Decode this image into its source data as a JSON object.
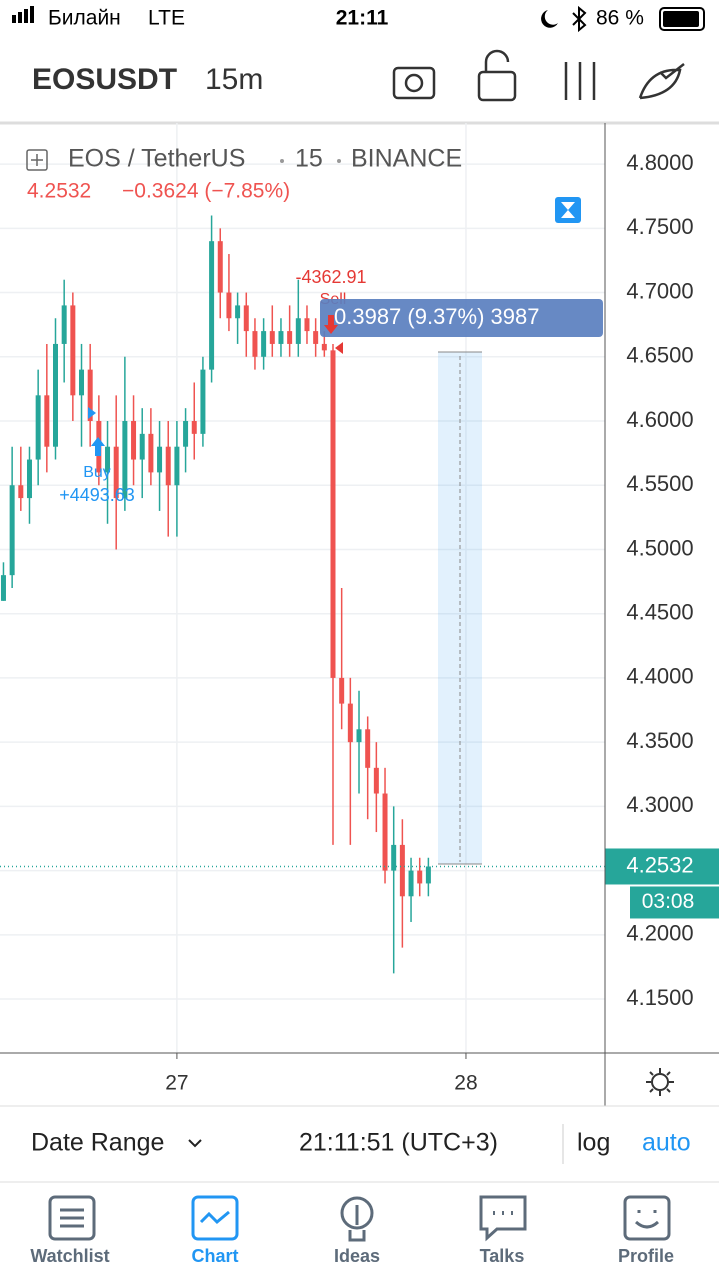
{
  "status_bar": {
    "carrier": "Билайн",
    "network": "LTE",
    "time": "21:11",
    "battery": "86 %"
  },
  "header": {
    "symbol": "EOSUSDT",
    "interval": "15m"
  },
  "chart_data": {
    "type": "candlestick",
    "legend": {
      "name": "EOS / TetherUS",
      "interval": "15",
      "exchange": "BINANCE"
    },
    "quote": {
      "last": "4.2532",
      "change": "−0.3624 (−7.85%)"
    },
    "up_color": "#26a69a",
    "down_color": "#ef5350",
    "x": [
      26.4,
      26.43,
      26.46,
      26.49,
      26.52,
      26.55,
      26.58,
      26.61,
      26.64,
      26.67,
      26.7,
      26.73,
      26.76,
      26.79,
      26.82,
      26.85,
      26.88,
      26.91,
      26.94,
      26.97,
      27.0,
      27.03,
      27.06,
      27.09,
      27.12,
      27.15,
      27.18,
      27.21,
      27.24,
      27.27,
      27.3,
      27.33,
      27.36,
      27.39,
      27.42,
      27.45,
      27.48,
      27.51,
      27.54,
      27.57,
      27.6,
      27.63,
      27.66,
      27.69,
      27.72,
      27.75,
      27.78,
      27.81,
      27.84,
      27.87
    ],
    "open": [
      4.46,
      4.48,
      4.55,
      4.54,
      4.57,
      4.62,
      4.58,
      4.66,
      4.69,
      4.62,
      4.64,
      4.6,
      4.56,
      4.58,
      4.54,
      4.6,
      4.57,
      4.59,
      4.56,
      4.58,
      4.55,
      4.58,
      4.6,
      4.59,
      4.64,
      4.74,
      4.7,
      4.68,
      4.69,
      4.67,
      4.65,
      4.67,
      4.66,
      4.67,
      4.66,
      4.68,
      4.67,
      4.66,
      4.655,
      4.4,
      4.38,
      4.35,
      4.36,
      4.33,
      4.31,
      4.25,
      4.27,
      4.23,
      4.25,
      4.24
    ],
    "high": [
      4.49,
      4.58,
      4.58,
      4.58,
      4.64,
      4.66,
      4.68,
      4.71,
      4.7,
      4.66,
      4.66,
      4.62,
      4.6,
      4.62,
      4.65,
      4.62,
      4.61,
      4.61,
      4.6,
      4.6,
      4.6,
      4.61,
      4.63,
      4.65,
      4.76,
      4.75,
      4.73,
      4.7,
      4.7,
      4.68,
      4.68,
      4.69,
      4.68,
      4.69,
      4.71,
      4.69,
      4.68,
      4.67,
      4.66,
      4.47,
      4.4,
      4.39,
      4.37,
      4.35,
      4.33,
      4.3,
      4.29,
      4.26,
      4.26,
      4.26
    ],
    "low": [
      4.46,
      4.47,
      4.53,
      4.52,
      4.55,
      4.56,
      4.57,
      4.63,
      4.6,
      4.58,
      4.58,
      4.55,
      4.52,
      4.5,
      4.53,
      4.55,
      4.54,
      4.55,
      4.53,
      4.51,
      4.51,
      4.56,
      4.57,
      4.58,
      4.63,
      4.68,
      4.67,
      4.66,
      4.65,
      4.64,
      4.64,
      4.65,
      4.65,
      4.65,
      4.65,
      4.66,
      4.65,
      4.65,
      4.27,
      4.36,
      4.27,
      4.31,
      4.29,
      4.28,
      4.24,
      4.17,
      4.19,
      4.21,
      4.23,
      4.23
    ],
    "close": [
      4.48,
      4.55,
      4.54,
      4.57,
      4.62,
      4.58,
      4.66,
      4.69,
      4.62,
      4.64,
      4.6,
      4.56,
      4.58,
      4.54,
      4.6,
      4.57,
      4.59,
      4.56,
      4.58,
      4.55,
      4.58,
      4.6,
      4.59,
      4.64,
      4.74,
      4.7,
      4.68,
      4.69,
      4.67,
      4.65,
      4.67,
      4.66,
      4.67,
      4.66,
      4.68,
      4.67,
      4.66,
      4.655,
      4.4,
      4.38,
      4.35,
      4.36,
      4.33,
      4.31,
      4.25,
      4.27,
      4.23,
      4.25,
      4.24,
      4.2532
    ],
    "xlim": [
      26.388,
      28.481
    ],
    "ylim": [
      4.108,
      4.832
    ],
    "xticks": [
      {
        "value": 27,
        "label": "27"
      },
      {
        "value": 28,
        "label": "28"
      }
    ],
    "yticks": [
      {
        "value": 4.8,
        "label": "4.8000"
      },
      {
        "value": 4.75,
        "label": "4.7500"
      },
      {
        "value": 4.7,
        "label": "4.7000"
      },
      {
        "value": 4.65,
        "label": "4.6500"
      },
      {
        "value": 4.6,
        "label": "4.6000"
      },
      {
        "value": 4.55,
        "label": "4.5500"
      },
      {
        "value": 4.5,
        "label": "4.5000"
      },
      {
        "value": 4.45,
        "label": "4.4500"
      },
      {
        "value": 4.4,
        "label": "4.4000"
      },
      {
        "value": 4.35,
        "label": "4.3500"
      },
      {
        "value": 4.3,
        "label": "4.3000"
      },
      {
        "value": 4.25,
        "label": "4.2500"
      },
      {
        "value": 4.2,
        "label": "4.2000"
      },
      {
        "value": 4.15,
        "label": "4.1500"
      }
    ],
    "grid": true,
    "last_price": {
      "value": 4.2532,
      "label": "4.2532"
    },
    "countdown": "03:08",
    "annotations": {
      "buy": "Buy",
      "buy_pnl": "+4493.63",
      "sell": "Sell",
      "sell_pnl": "-4362.91",
      "measure": "0.3987 (9.37%) 3987"
    }
  },
  "toolbar": {
    "date_range": "Date Range",
    "clock": "21:11:51 (UTC+3)",
    "log": "log",
    "auto": "auto"
  },
  "tabs": [
    "Watchlist",
    "Chart",
    "Ideas",
    "Talks",
    "Profile"
  ]
}
